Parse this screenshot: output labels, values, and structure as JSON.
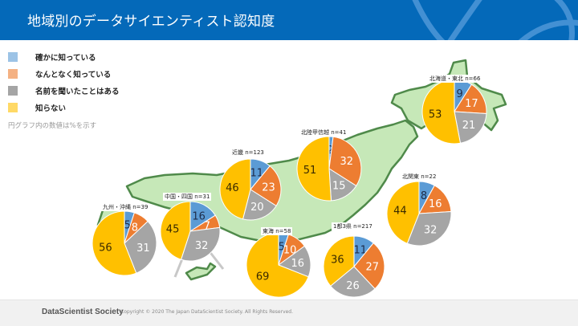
{
  "header": {
    "title": "地域別のデータサイエンティスト認知度"
  },
  "legend": {
    "items": [
      {
        "label": "確かに知っている",
        "color": "#5b9bd5"
      },
      {
        "label": "なんとなく知っている",
        "color": "#ed7d31"
      },
      {
        "label": "名前を聞いたことはある",
        "color": "#a5a5a5"
      },
      {
        "label": "知らない",
        "color": "#ffc000"
      }
    ],
    "note": "円グラフ内の数値は%を示す"
  },
  "footer": {
    "brand": "DataScientist Society",
    "copyright": "Copyright © 2020 The Japan DataScientist Society. All Rights Reserved."
  },
  "chart_data": {
    "type": "pie",
    "title": "地域別のデータサイエンティスト認知度",
    "categories": [
      "確かに知っている",
      "なんとなく知っている",
      "名前を聞いたことはある",
      "知らない"
    ],
    "unit": "%",
    "series": [
      {
        "name": "北海道・東北",
        "n": 66,
        "label": "北海道・東北 n=66",
        "values": [
          9,
          17,
          21,
          53
        ]
      },
      {
        "name": "北陸甲信越",
        "n": 41,
        "label": "北陸甲信越 n=41",
        "values": [
          2,
          32,
          15,
          51
        ]
      },
      {
        "name": "近畿",
        "n": 123,
        "label": "近畿 n=123",
        "values": [
          11,
          23,
          20,
          46
        ]
      },
      {
        "name": "北関東",
        "n": 22,
        "label": "北関東 n=22",
        "values": [
          8,
          16,
          32,
          44
        ]
      },
      {
        "name": "中国・四国",
        "n": 31,
        "label": "中国・四国 n=31",
        "values": [
          16,
          7,
          32,
          45
        ]
      },
      {
        "name": "九州・沖縄",
        "n": 39,
        "label": "九州・沖縄 n=39",
        "values": [
          5,
          8,
          31,
          56
        ]
      },
      {
        "name": "東海",
        "n": 58,
        "label": "東海 n=58",
        "values": [
          5,
          10,
          16,
          69
        ]
      },
      {
        "name": "1都3県",
        "n": 217,
        "label": "1都3県 n=217",
        "values": [
          11,
          27,
          26,
          36
        ]
      }
    ]
  }
}
